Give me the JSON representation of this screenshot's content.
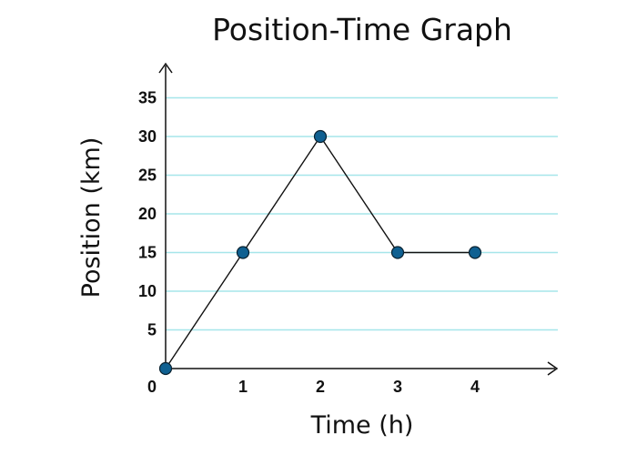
{
  "colors": {
    "gridline": "#a6e6ea",
    "axis": "#111111",
    "line": "#111111",
    "marker_fill": "#0f6091",
    "marker_stroke": "#0a2230"
  },
  "chart_data": {
    "type": "line",
    "title": "Position-Time Graph",
    "xlabel": "Time (h)",
    "ylabel": "Position (km)",
    "x": [
      0,
      1,
      2,
      3,
      4
    ],
    "y": [
      0,
      15,
      30,
      15,
      15
    ],
    "xticks": [
      "0",
      "1",
      "2",
      "3",
      "4"
    ],
    "yticks": [
      "5",
      "10",
      "15",
      "20",
      "25",
      "30",
      "35"
    ],
    "xlim": [
      0,
      5
    ],
    "ylim": [
      0,
      35
    ],
    "grid": "horizontal"
  }
}
